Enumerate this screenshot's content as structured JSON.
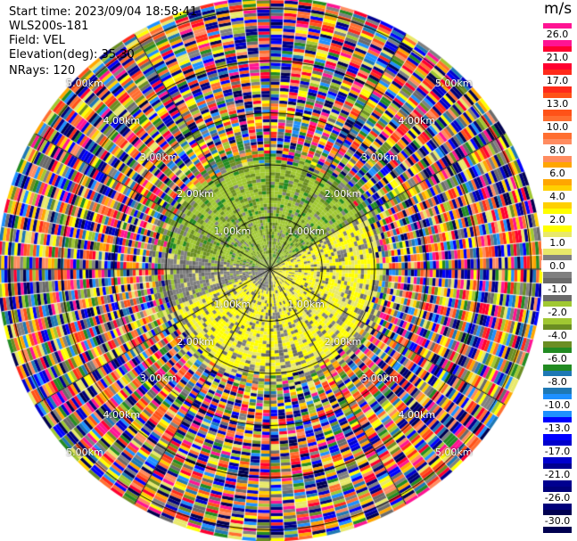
{
  "header": {
    "start_time": "Start time: 2023/09/04 18:58:41",
    "instrument": "WLS200s-181",
    "field": "Field: VEL",
    "elevation": "Elevation(deg): 35.30",
    "nrays": "NRays: 120"
  },
  "colorbar": {
    "unit": "m/s",
    "levels": [
      {
        "label": "26.0",
        "color": "#ff1493"
      },
      {
        "label": "21.0",
        "color": "#ff0030"
      },
      {
        "label": "17.0",
        "color": "#ff2a1a"
      },
      {
        "label": "13.0",
        "color": "#ff5218"
      },
      {
        "label": "10.0",
        "color": "#ff6e30"
      },
      {
        "label": "8.0",
        "color": "#ff8c60"
      },
      {
        "label": "6.0",
        "color": "#ffa600"
      },
      {
        "label": "4.0",
        "color": "#ffd000"
      },
      {
        "label": "2.0",
        "color": "#ffff00"
      },
      {
        "label": "1.0",
        "color": "#e8e86a"
      },
      {
        "label": "0.0",
        "color": "#808080"
      },
      {
        "label": "-1.0",
        "color": "#6a6a6a"
      },
      {
        "label": "-2.0",
        "color": "#a0c832"
      },
      {
        "label": "-4.0",
        "color": "#6b8e23"
      },
      {
        "label": "-6.0",
        "color": "#228b22"
      },
      {
        "label": "-8.0",
        "color": "#1e78b4"
      },
      {
        "label": "-10.0",
        "color": "#1e90ff"
      },
      {
        "label": "-13.0",
        "color": "#0000ff"
      },
      {
        "label": "-17.0",
        "color": "#0000cd"
      },
      {
        "label": "-21.0",
        "color": "#000090"
      },
      {
        "label": "-26.0",
        "color": "#00007a"
      },
      {
        "label": "-30.0",
        "color": "#000050"
      }
    ]
  },
  "chart_data": {
    "type": "heatmap",
    "title": "",
    "field": "VEL",
    "unit": "m/s",
    "elevation_deg": 35.3,
    "nrays": 120,
    "range_rings": [
      {
        "range_km": 1.0,
        "label": "1.00km"
      },
      {
        "range_km": 2.0,
        "label": "2.00km"
      },
      {
        "range_km": 3.0,
        "label": "3.00km"
      },
      {
        "range_km": 4.0,
        "label": "4.00km"
      },
      {
        "range_km": 5.0,
        "label": "5.00km"
      }
    ],
    "max_range_km": 5.2,
    "regions": [
      {
        "description": "north sector inside ~2 km",
        "velocity": "-2.0 to -4.0 (green)"
      },
      {
        "description": "east to south-east inside ~2 km",
        "velocity": "1.0 to 2.0 (yellow)"
      },
      {
        "description": "south-west inside ~2 km",
        "velocity": "1.0 to 2.0 (yellow)"
      },
      {
        "description": "beyond ~2 km",
        "velocity": "noise, all levels"
      }
    ]
  }
}
